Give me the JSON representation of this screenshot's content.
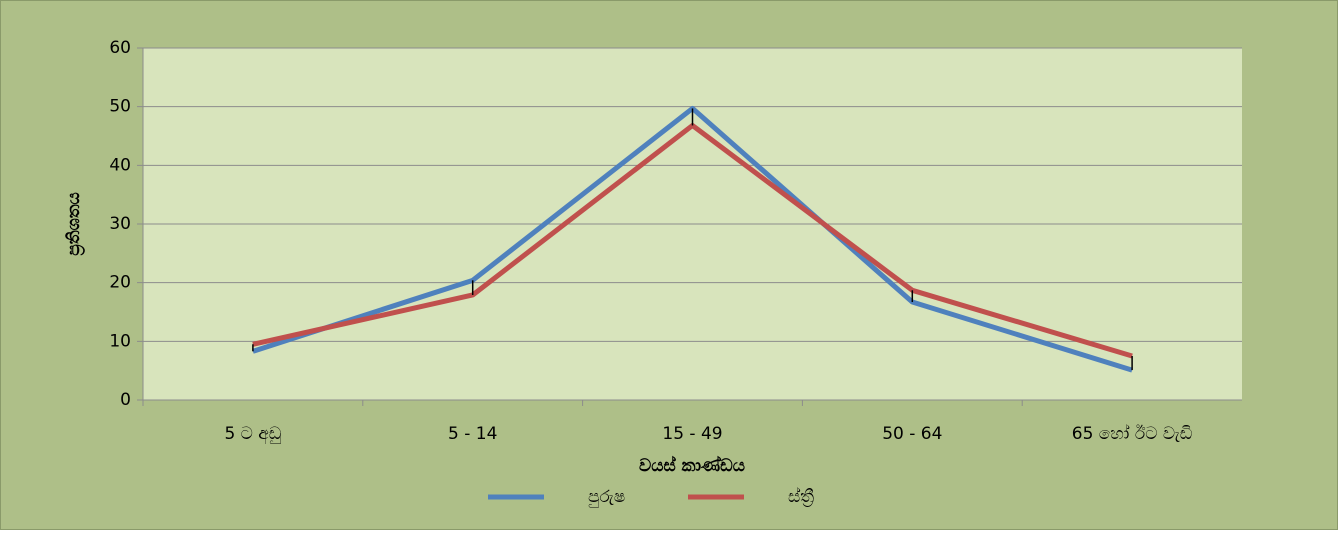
{
  "chart_data": {
    "type": "line",
    "x_label": "වයස් කාණ්ඩය",
    "y_label": "ප්‍රතිශතය",
    "categories": [
      "5 ට අඩු",
      "5 - 14",
      "15 - 49",
      "50 - 64",
      "65 හෝ ඊට වැඩි"
    ],
    "series": [
      {
        "name": "පුරුෂ",
        "color": "#4f81bd",
        "values": [
          8.3,
          20.4,
          49.7,
          16.7,
          5.1
        ]
      },
      {
        "name": "ස්ත්‍රී",
        "color": "#c0504d",
        "values": [
          9.5,
          17.9,
          46.8,
          18.7,
          7.5
        ]
      }
    ],
    "ylim": [
      0,
      60
    ],
    "yticks": [
      0,
      10,
      20,
      30,
      40,
      50,
      60
    ],
    "grid": true,
    "high_low_lines": true,
    "legend": "bottom"
  }
}
